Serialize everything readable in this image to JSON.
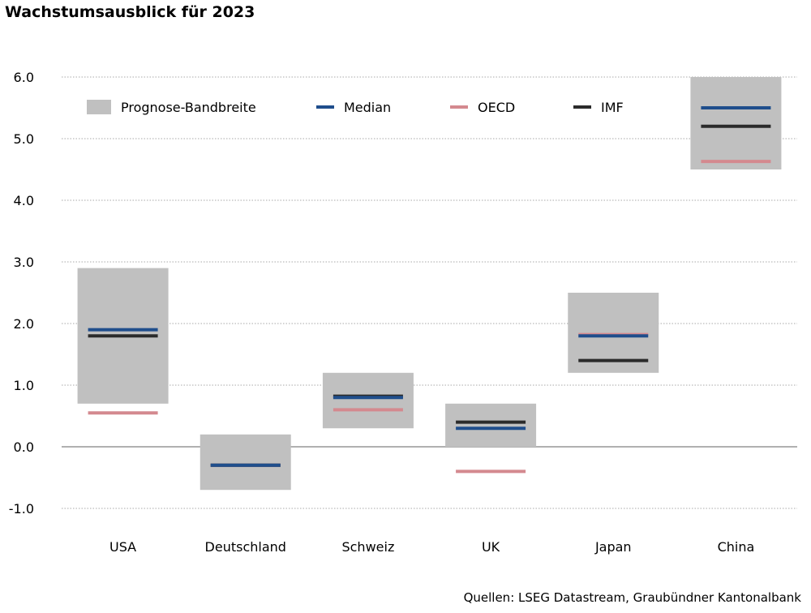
{
  "chart_data": {
    "type": "range-bar",
    "title": "Wachstumsausblick für 2023",
    "source": "Quellen: LSEG Datastream, Graubündner Kantonalbank",
    "ylim": [
      -1.0,
      6.0
    ],
    "yticks": [
      "6.0",
      "5.0",
      "4.0",
      "3.0",
      "2.0",
      "1.0",
      "0.0",
      "-1.0"
    ],
    "ytick_values": [
      6,
      5,
      4,
      3,
      2,
      1,
      0,
      -1
    ],
    "grid": true,
    "legend_position": "top",
    "categories": [
      "USA",
      "Deutschland",
      "Schweiz",
      "UK",
      "Japan",
      "China"
    ],
    "range": {
      "name": "Prognose-Bandbreite",
      "color": "#c0c0c0",
      "low": [
        0.7,
        -0.7,
        0.3,
        0.0,
        1.2,
        4.5
      ],
      "high": [
        2.9,
        0.2,
        1.2,
        0.7,
        2.5,
        6.0
      ]
    },
    "series": [
      {
        "name": "OECD",
        "color": "#d4898f",
        "values": [
          0.55,
          -0.3,
          0.6,
          -0.4,
          1.82,
          4.63
        ]
      },
      {
        "name": "IMF",
        "color": "#2b2b2b",
        "values": [
          1.8,
          -0.3,
          0.82,
          0.4,
          1.4,
          5.2
        ]
      },
      {
        "name": "Median",
        "color": "#1f4e8c",
        "values": [
          1.9,
          -0.3,
          0.8,
          0.3,
          1.8,
          5.5
        ]
      }
    ],
    "legend": [
      {
        "label": "Prognose-Bandbreite",
        "type": "box",
        "color": "#c0c0c0"
      },
      {
        "label": "Median",
        "type": "line",
        "color": "#1f4e8c"
      },
      {
        "label": "OECD",
        "type": "line",
        "color": "#d4898f"
      },
      {
        "label": "IMF",
        "type": "line",
        "color": "#2b2b2b"
      }
    ]
  }
}
